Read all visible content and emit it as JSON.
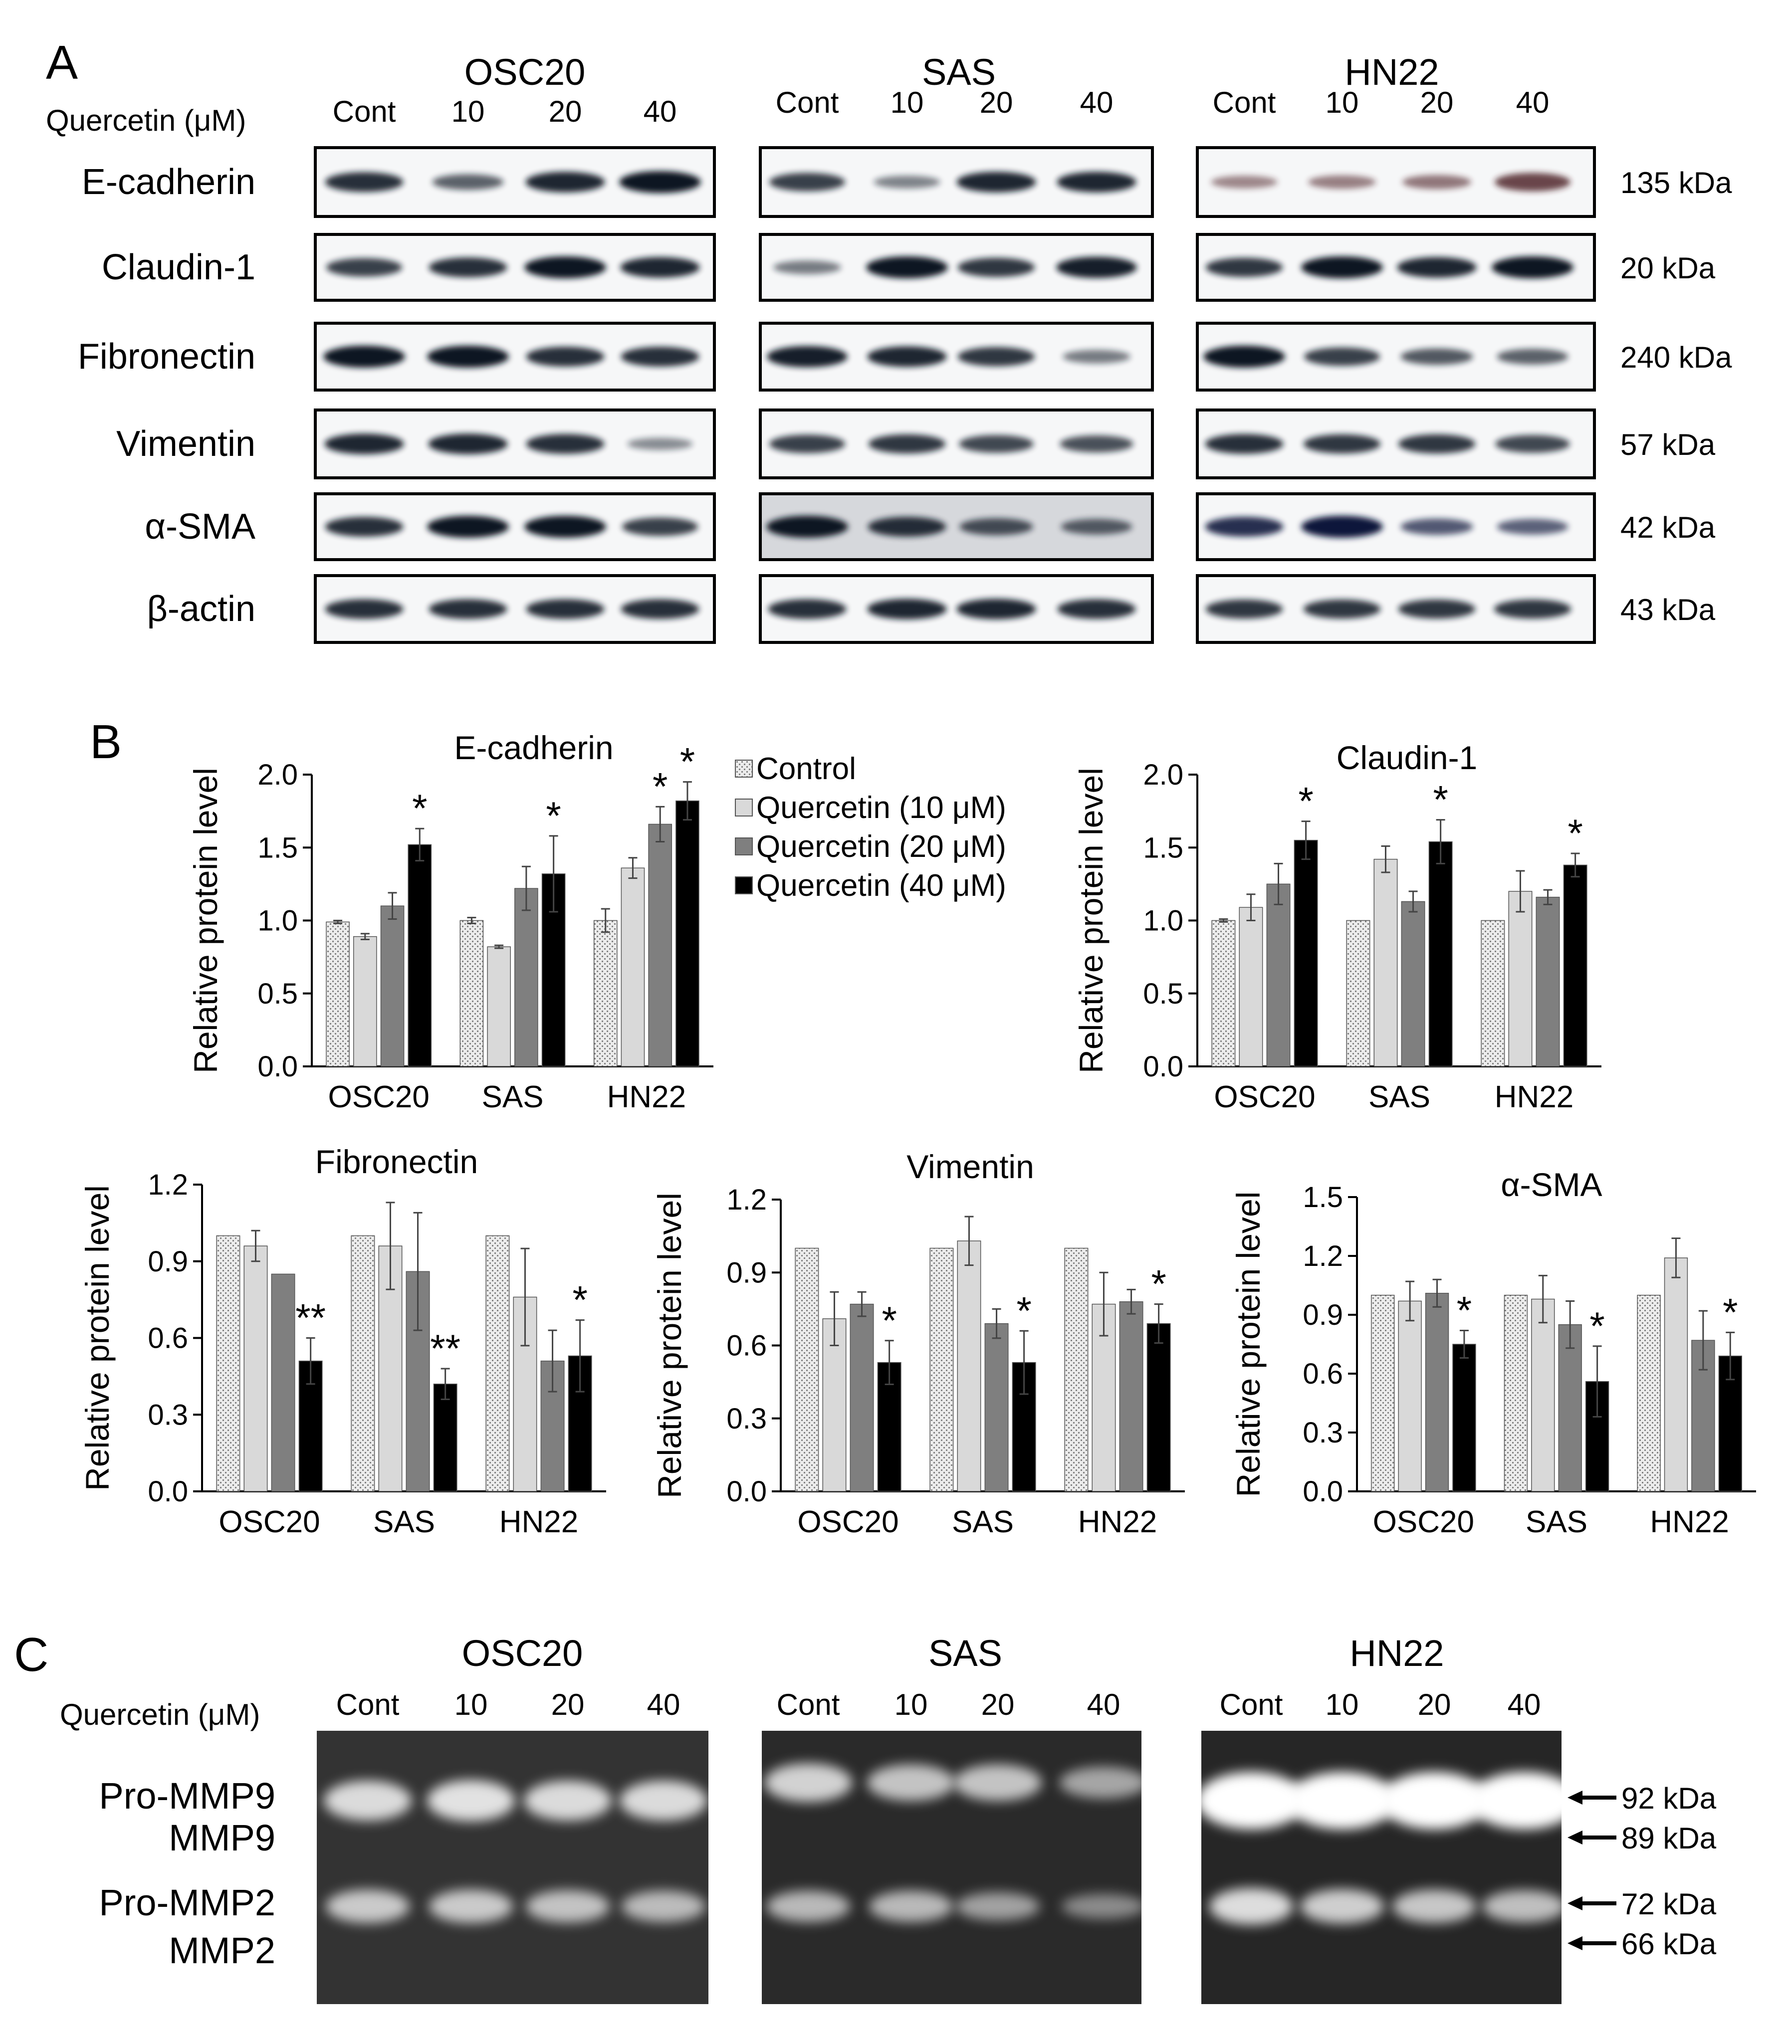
{
  "panels": {
    "A": {
      "letter": "A",
      "treatment_label": "Quercetin (μM)",
      "lane_labels": [
        "Cont",
        "10",
        "20",
        "40"
      ],
      "cell_lines": [
        "OSC20",
        "SAS",
        "HN22"
      ],
      "proteins": [
        {
          "name": "E-cadherin",
          "size": "135 kDa"
        },
        {
          "name": "Claudin-1",
          "size": "20 kDa"
        },
        {
          "name": "Fibronectin",
          "size": "240 kDa"
        },
        {
          "name": "Vimentin",
          "size": "57 kDa"
        },
        {
          "name": "α-SMA",
          "size": "42 kDa"
        },
        {
          "name": "β-actin",
          "size": "43 kDa"
        }
      ],
      "band_intensity": [
        [
          [
            0.85,
            0.55,
            0.9,
            1.0
          ],
          [
            0.75,
            0.35,
            0.9,
            0.9
          ],
          [
            0.35,
            0.4,
            0.45,
            0.75
          ]
        ],
        [
          [
            0.75,
            0.85,
            1.0,
            0.9
          ],
          [
            0.4,
            1.0,
            0.8,
            0.95
          ],
          [
            0.8,
            1.0,
            0.9,
            1.0
          ]
        ],
        [
          [
            1.0,
            1.0,
            0.85,
            0.85
          ],
          [
            0.95,
            0.9,
            0.8,
            0.4
          ],
          [
            1.0,
            0.75,
            0.6,
            0.55
          ]
        ],
        [
          [
            0.9,
            0.9,
            0.85,
            0.3
          ],
          [
            0.75,
            0.8,
            0.7,
            0.65
          ],
          [
            0.85,
            0.8,
            0.8,
            0.7
          ]
        ],
        [
          [
            0.85,
            1.0,
            1.0,
            0.75
          ],
          [
            1.0,
            0.85,
            0.65,
            0.55
          ],
          [
            0.85,
            1.0,
            0.6,
            0.55
          ]
        ],
        [
          [
            0.85,
            0.85,
            0.85,
            0.85
          ],
          [
            0.85,
            0.9,
            0.9,
            0.85
          ],
          [
            0.8,
            0.8,
            0.8,
            0.8
          ]
        ]
      ]
    },
    "B": {
      "letter": "B"
    },
    "C": {
      "letter": "C",
      "treatment_label": "Quercetin (μM)",
      "lane_labels": [
        "Cont",
        "10",
        "20",
        "40"
      ],
      "cell_lines": [
        "OSC20",
        "SAS",
        "HN22"
      ],
      "band_labels": [
        "Pro-MMP9",
        "MMP9",
        "Pro-MMP2",
        "MMP2"
      ],
      "size_markers": [
        "92 kDa",
        "89 kDa",
        "72 kDa",
        "66 kDa"
      ],
      "mmp9_intensity": [
        [
          0.75,
          0.8,
          0.75,
          0.75
        ],
        [
          0.7,
          0.6,
          0.6,
          0.4
        ],
        [
          1.0,
          1.0,
          1.0,
          1.0
        ]
      ],
      "mmp2_intensity": [
        [
          0.7,
          0.7,
          0.65,
          0.6
        ],
        [
          0.6,
          0.6,
          0.45,
          0.3
        ],
        [
          0.85,
          0.75,
          0.7,
          0.65
        ]
      ]
    }
  },
  "chart_data": [
    {
      "type": "bar",
      "title": "E-cadherin",
      "ylabel": "Relative protein level",
      "categories": [
        "OSC20",
        "SAS",
        "HN22"
      ],
      "ylim": [
        0,
        2.0
      ],
      "yticks": [
        "0.0",
        "0.5",
        "1.0",
        "1.5",
        "2.0"
      ],
      "series": [
        {
          "name": "Control",
          "values": [
            0.99,
            1.0,
            1.0
          ],
          "errors": [
            0.01,
            0.02,
            0.08
          ]
        },
        {
          "name": "Quercetin (10 μM)",
          "values": [
            0.89,
            0.82,
            1.36
          ],
          "errors": [
            0.02,
            0.01,
            0.07
          ]
        },
        {
          "name": "Quercetin (20 μM)",
          "values": [
            1.1,
            1.22,
            1.66
          ],
          "errors": [
            0.09,
            0.15,
            0.12
          ]
        },
        {
          "name": "Quercetin (40 μM)",
          "values": [
            1.52,
            1.32,
            1.82
          ],
          "errors": [
            0.11,
            0.26,
            0.13
          ]
        }
      ],
      "annotations": [
        {
          "category": 0,
          "series": 3,
          "text": "*"
        },
        {
          "category": 1,
          "series": 3,
          "text": "*"
        },
        {
          "category": 2,
          "series": 2,
          "text": "*"
        },
        {
          "category": 2,
          "series": 3,
          "text": "*"
        }
      ],
      "legend": {
        "placement": "right"
      }
    },
    {
      "type": "bar",
      "title": "Claudin-1",
      "ylabel": "Relative protein level",
      "categories": [
        "OSC20",
        "SAS",
        "HN22"
      ],
      "ylim": [
        0,
        2.0
      ],
      "yticks": [
        "0.0",
        "0.5",
        "1.0",
        "1.5",
        "2.0"
      ],
      "series": [
        {
          "name": "Control",
          "values": [
            1.0,
            1.0,
            1.0
          ],
          "errors": [
            0.01,
            0.0,
            0.0
          ]
        },
        {
          "name": "Quercetin (10 μM)",
          "values": [
            1.09,
            1.42,
            1.2
          ],
          "errors": [
            0.09,
            0.09,
            0.14
          ]
        },
        {
          "name": "Quercetin (20 μM)",
          "values": [
            1.25,
            1.13,
            1.16
          ],
          "errors": [
            0.14,
            0.07,
            0.05
          ]
        },
        {
          "name": "Quercetin (40 μM)",
          "values": [
            1.55,
            1.54,
            1.38
          ],
          "errors": [
            0.13,
            0.15,
            0.08
          ]
        }
      ],
      "annotations": [
        {
          "category": 0,
          "series": 3,
          "text": "*"
        },
        {
          "category": 1,
          "series": 3,
          "text": "*"
        },
        {
          "category": 2,
          "series": 3,
          "text": "*"
        }
      ]
    },
    {
      "type": "bar",
      "title": "Fibronectin",
      "ylabel": "Relative protein level",
      "categories": [
        "OSC20",
        "SAS",
        "HN22"
      ],
      "ylim": [
        0,
        1.2
      ],
      "yticks": [
        "0.0",
        "0.3",
        "0.6",
        "0.9",
        "1.2"
      ],
      "series": [
        {
          "name": "Control",
          "values": [
            1.0,
            1.0,
            1.0
          ],
          "errors": [
            0.0,
            0.0,
            0.0
          ]
        },
        {
          "name": "Quercetin (10 μM)",
          "values": [
            0.96,
            0.96,
            0.76
          ],
          "errors": [
            0.06,
            0.17,
            0.19
          ]
        },
        {
          "name": "Quercetin (20 μM)",
          "values": [
            0.85,
            0.86,
            0.51
          ],
          "errors": [
            0.0,
            0.23,
            0.12
          ]
        },
        {
          "name": "Quercetin (40 μM)",
          "values": [
            0.51,
            0.42,
            0.53
          ],
          "errors": [
            0.09,
            0.06,
            0.14
          ]
        }
      ],
      "annotations": [
        {
          "category": 0,
          "series": 3,
          "text": "**"
        },
        {
          "category": 1,
          "series": 3,
          "text": "**"
        },
        {
          "category": 2,
          "series": 3,
          "text": "*"
        }
      ]
    },
    {
      "type": "bar",
      "title": "Vimentin",
      "ylabel": "Relative protein level",
      "categories": [
        "OSC20",
        "SAS",
        "HN22"
      ],
      "ylim": [
        0,
        1.2
      ],
      "yticks": [
        "0.0",
        "0.3",
        "0.6",
        "0.9",
        "1.2"
      ],
      "series": [
        {
          "name": "Control",
          "values": [
            1.0,
            1.0,
            1.0
          ],
          "errors": [
            0.0,
            0.0,
            0.0
          ]
        },
        {
          "name": "Quercetin (10 μM)",
          "values": [
            0.71,
            1.03,
            0.77
          ],
          "errors": [
            0.11,
            0.1,
            0.13
          ]
        },
        {
          "name": "Quercetin (20 μM)",
          "values": [
            0.77,
            0.69,
            0.78
          ],
          "errors": [
            0.05,
            0.06,
            0.05
          ]
        },
        {
          "name": "Quercetin (40 μM)",
          "values": [
            0.53,
            0.53,
            0.69
          ],
          "errors": [
            0.09,
            0.13,
            0.08
          ]
        }
      ],
      "annotations": [
        {
          "category": 0,
          "series": 3,
          "text": "*"
        },
        {
          "category": 1,
          "series": 3,
          "text": "*"
        },
        {
          "category": 2,
          "series": 3,
          "text": "*"
        }
      ]
    },
    {
      "type": "bar",
      "title": "α-SMA",
      "ylabel": "Relative protein level",
      "categories": [
        "OSC20",
        "SAS",
        "HN22"
      ],
      "ylim": [
        0,
        1.5
      ],
      "yticks": [
        "0.0",
        "0.3",
        "0.6",
        "0.9",
        "1.2",
        "1.5"
      ],
      "series": [
        {
          "name": "Control",
          "values": [
            1.0,
            1.0,
            1.0
          ],
          "errors": [
            0.0,
            0.0,
            0.0
          ]
        },
        {
          "name": "Quercetin (10 μM)",
          "values": [
            0.97,
            0.98,
            1.19
          ],
          "errors": [
            0.1,
            0.12,
            0.1
          ]
        },
        {
          "name": "Quercetin (20 μM)",
          "values": [
            1.01,
            0.85,
            0.77
          ],
          "errors": [
            0.07,
            0.12,
            0.15
          ]
        },
        {
          "name": "Quercetin (40 μM)",
          "values": [
            0.75,
            0.56,
            0.69
          ],
          "errors": [
            0.07,
            0.18,
            0.12
          ]
        }
      ],
      "annotations": [
        {
          "category": 0,
          "series": 3,
          "text": "*"
        },
        {
          "category": 1,
          "series": 3,
          "text": "*"
        },
        {
          "category": 2,
          "series": 3,
          "text": "*"
        }
      ]
    }
  ]
}
